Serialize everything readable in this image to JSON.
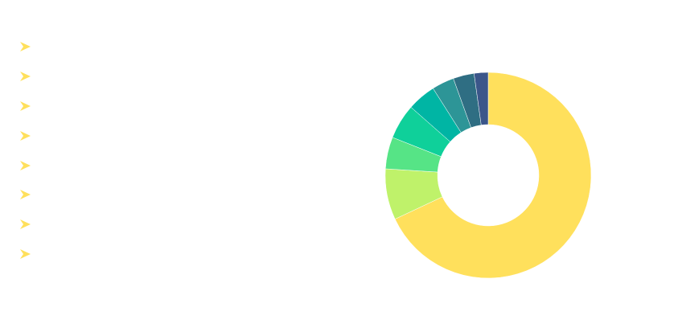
{
  "chart_data": {
    "type": "pie",
    "variant": "donut",
    "title": "",
    "legend": {
      "position": "left",
      "marker": "arrow",
      "marker_color": "#FFE05C",
      "labels": [
        "",
        "",
        "",
        "",
        "",
        "",
        "",
        ""
      ]
    },
    "slices": [
      {
        "name": "",
        "value": 68.0,
        "color": "#FFE05C"
      },
      {
        "name": "",
        "value": 8.0,
        "color": "#BFF26A"
      },
      {
        "name": "",
        "value": 5.0,
        "color": "#56E486"
      },
      {
        "name": "",
        "value": 5.5,
        "color": "#0FD09A"
      },
      {
        "name": "",
        "value": 4.5,
        "color": "#00B5A4"
      },
      {
        "name": "",
        "value": 3.5,
        "color": "#2D9597"
      },
      {
        "name": "",
        "value": 3.3,
        "color": "#2F6E83"
      },
      {
        "name": "",
        "value": 2.2,
        "color": "#3B568A"
      }
    ]
  }
}
